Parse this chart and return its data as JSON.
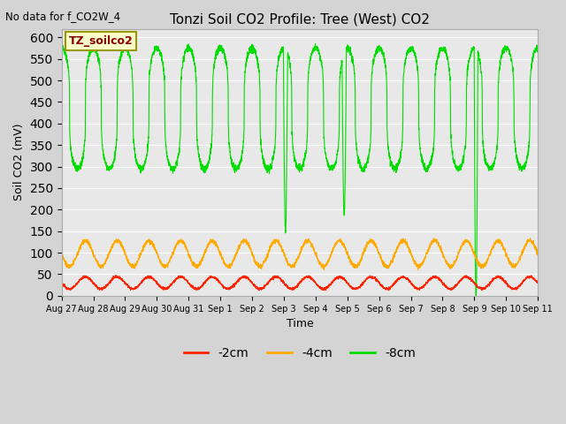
{
  "title": "Tonzi Soil CO2 Profile: Tree (West) CO2",
  "subtitle": "No data for f_CO2W_4",
  "ylabel": "Soil CO2 (mV)",
  "xlabel": "Time",
  "legend_label": "TZ_soilco2",
  "series_labels": [
    "-2cm",
    "-4cm",
    "-8cm"
  ],
  "series_colors": [
    "#ff2200",
    "#ffaa00",
    "#00dd00"
  ],
  "ylim": [
    0,
    620
  ],
  "yticks": [
    0,
    50,
    100,
    150,
    200,
    250,
    300,
    350,
    400,
    450,
    500,
    550,
    600
  ],
  "bg_color": "#e8e8e8",
  "n_days": 15,
  "points_per_day": 240,
  "fig_bg": "#d4d4d4",
  "red_base": 30,
  "red_amp": 14,
  "orange_base": 98,
  "orange_amp": 30
}
